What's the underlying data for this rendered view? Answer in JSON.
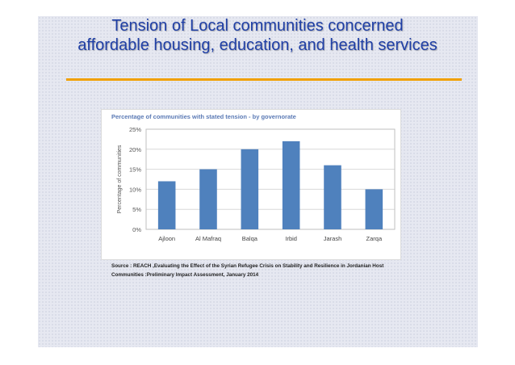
{
  "slide": {
    "title_line1": "Tension of Local communities concerned",
    "title_line2": "affordable housing, education, and health services",
    "title_color": "#1f3fa6",
    "rule_color": "#f0a000",
    "source_line1": "Source : REACH ,Evaluating the Effect of the Syrian Refugee Crisis on Stability and Resilience in Jordanian Host",
    "source_line2": "Communities :Preliminary Impact Assessment, January 2014"
  },
  "chart_data": {
    "type": "bar",
    "title": "Percentage of communities with stated tension - by governorate",
    "xlabel": "",
    "ylabel": "Percentage of communities",
    "categories": [
      "Ajloon",
      "Al Mafraq",
      "Balqa",
      "Irbid",
      "Jarash",
      "Zarqa"
    ],
    "values": [
      12,
      15,
      20,
      22,
      16,
      10
    ],
    "ylim": [
      0,
      25
    ],
    "yticks": [
      "0%",
      "5%",
      "10%",
      "15%",
      "20%",
      "25%"
    ],
    "grid": true,
    "bar_color": "#4f81bd"
  }
}
